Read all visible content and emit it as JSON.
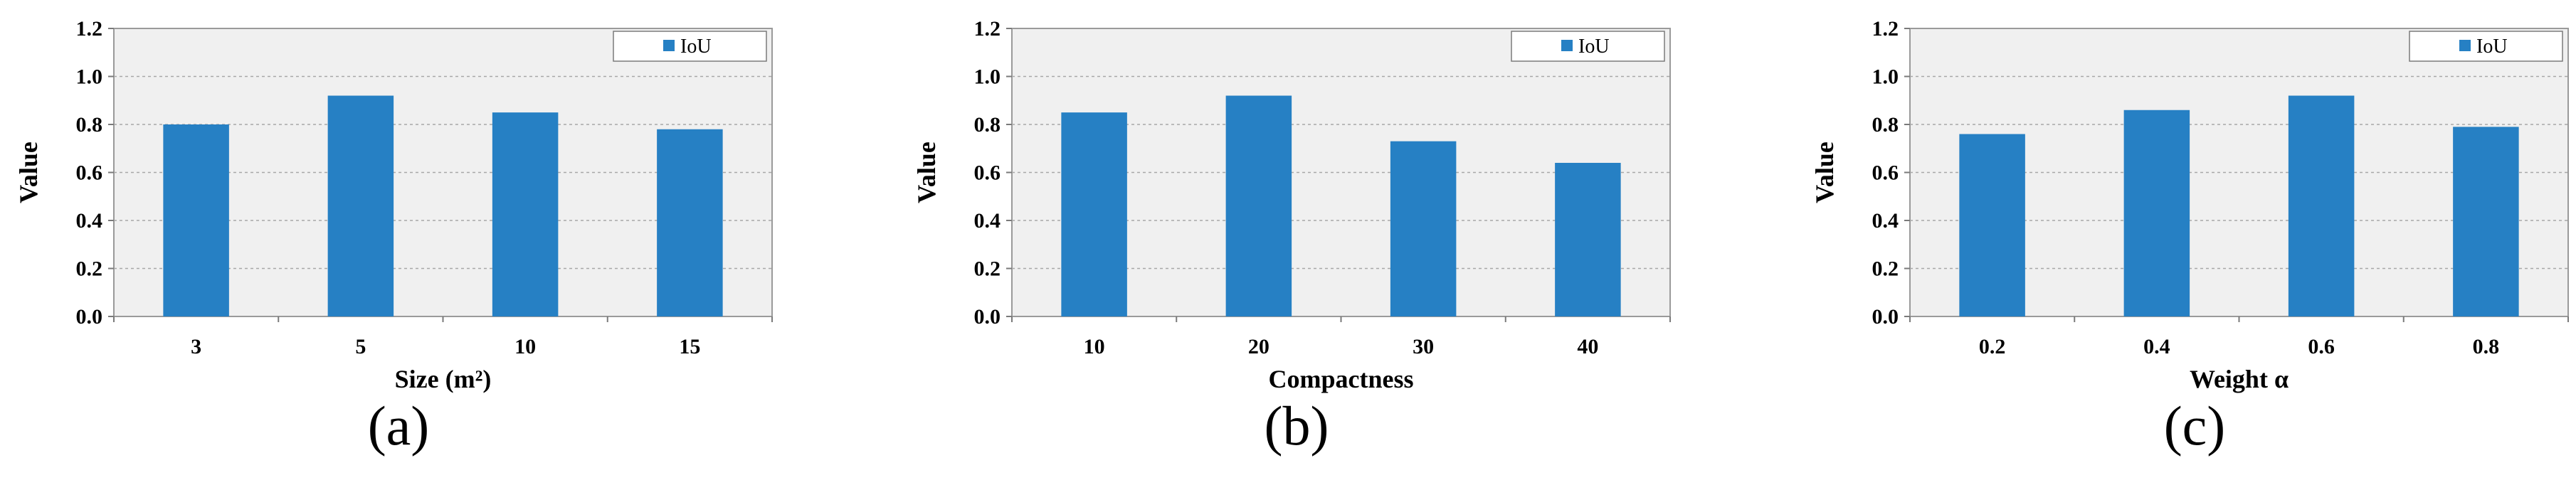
{
  "chart_data": [
    {
      "type": "bar",
      "panel_label": "(a)",
      "categories": [
        "3",
        "5",
        "10",
        "15"
      ],
      "series": [
        {
          "name": "IoU",
          "values": [
            0.8,
            0.92,
            0.85,
            0.78
          ]
        }
      ],
      "xlabel": "Size (m²)",
      "ylabel": "Value",
      "ylim": [
        0,
        1.2
      ],
      "yticks": [
        "0.0",
        "0.2",
        "0.4",
        "0.6",
        "0.8",
        "1.0",
        "1.2"
      ],
      "grid": "horizontal dashed",
      "legend_position": "top-right",
      "bar_color": "#2680c4",
      "plot_background": "#f0f0f0"
    },
    {
      "type": "bar",
      "panel_label": "(b)",
      "categories": [
        "10",
        "20",
        "30",
        "40"
      ],
      "series": [
        {
          "name": "IoU",
          "values": [
            0.85,
            0.92,
            0.73,
            0.64
          ]
        }
      ],
      "xlabel": "Compactness",
      "ylabel": "Value",
      "ylim": [
        0,
        1.2
      ],
      "yticks": [
        "0.0",
        "0.2",
        "0.4",
        "0.6",
        "0.8",
        "1.0",
        "1.2"
      ],
      "grid": "horizontal dashed",
      "legend_position": "top-right",
      "bar_color": "#2680c4",
      "plot_background": "#f0f0f0"
    },
    {
      "type": "bar",
      "panel_label": "(c)",
      "categories": [
        "0.2",
        "0.4",
        "0.6",
        "0.8"
      ],
      "series": [
        {
          "name": "IoU",
          "values": [
            0.76,
            0.86,
            0.92,
            0.79
          ]
        }
      ],
      "xlabel": "Weight α",
      "ylabel": "Value",
      "ylim": [
        0,
        1.2
      ],
      "yticks": [
        "0.0",
        "0.2",
        "0.4",
        "0.6",
        "0.8",
        "1.0",
        "1.2"
      ],
      "grid": "horizontal dashed",
      "legend_position": "top-right",
      "bar_color": "#2680c4",
      "plot_background": "#f0f0f0"
    }
  ]
}
